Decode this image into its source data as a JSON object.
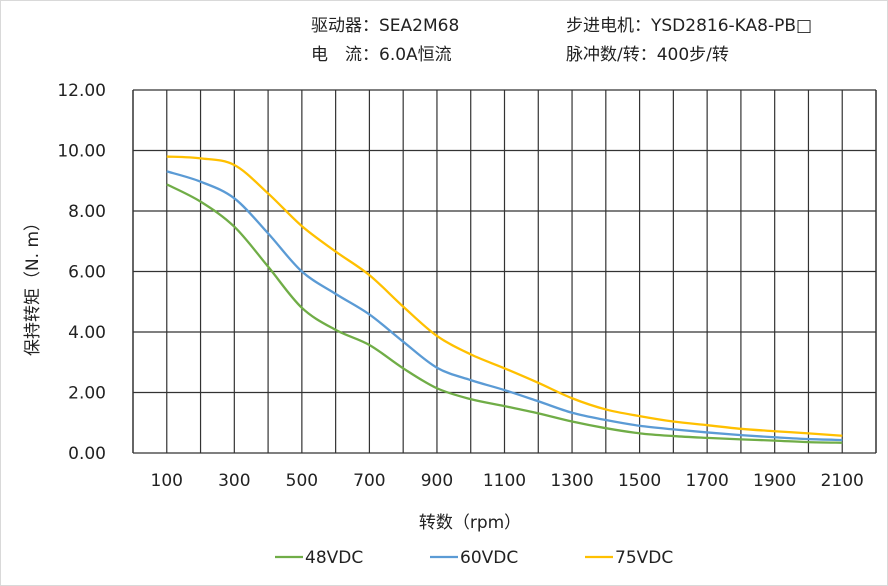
{
  "header": {
    "driver": "驱动器：SEA2M68",
    "motor": "步进电机：YSD2816-KA8-PB□",
    "current": "电　流：6.0A恒流",
    "pulses": "脉冲数/转：400步/转"
  },
  "chart_data": {
    "type": "line",
    "xlabel": "转数（rpm）",
    "ylabel": "保持转矩（N. m）",
    "xlim": [
      0,
      2200
    ],
    "ylim": [
      0,
      12
    ],
    "grid": true,
    "legend_position": "bottom",
    "x_ticks": [
      "100",
      "300",
      "500",
      "700",
      "900",
      "1100",
      "1300",
      "1500",
      "1700",
      "1900",
      "2100"
    ],
    "y_ticks": [
      "0.00",
      "2.00",
      "4.00",
      "6.00",
      "8.00",
      "10.00",
      "12.00"
    ],
    "x": [
      100,
      200,
      300,
      400,
      500,
      600,
      700,
      800,
      900,
      1000,
      1100,
      1200,
      1300,
      1400,
      1500,
      1600,
      1700,
      1800,
      1900,
      2000,
      2100
    ],
    "series": [
      {
        "name": "48VDC",
        "color": "#70ad47",
        "values": [
          8.88,
          8.31,
          7.48,
          6.16,
          4.8,
          4.07,
          3.57,
          2.8,
          2.14,
          1.78,
          1.55,
          1.31,
          1.04,
          0.82,
          0.65,
          0.56,
          0.5,
          0.45,
          0.41,
          0.36,
          0.34
        ]
      },
      {
        "name": "60VDC",
        "color": "#5b9bd5",
        "values": [
          9.31,
          8.97,
          8.42,
          7.26,
          6.0,
          5.26,
          4.58,
          3.68,
          2.82,
          2.41,
          2.08,
          1.71,
          1.33,
          1.09,
          0.9,
          0.78,
          0.68,
          0.59,
          0.52,
          0.46,
          0.43
        ]
      },
      {
        "name": "75VDC",
        "color": "#ffc000",
        "values": [
          9.8,
          9.74,
          9.52,
          8.58,
          7.5,
          6.66,
          5.88,
          4.84,
          3.87,
          3.26,
          2.8,
          2.32,
          1.81,
          1.44,
          1.22,
          1.04,
          0.92,
          0.8,
          0.72,
          0.65,
          0.57
        ]
      }
    ]
  }
}
